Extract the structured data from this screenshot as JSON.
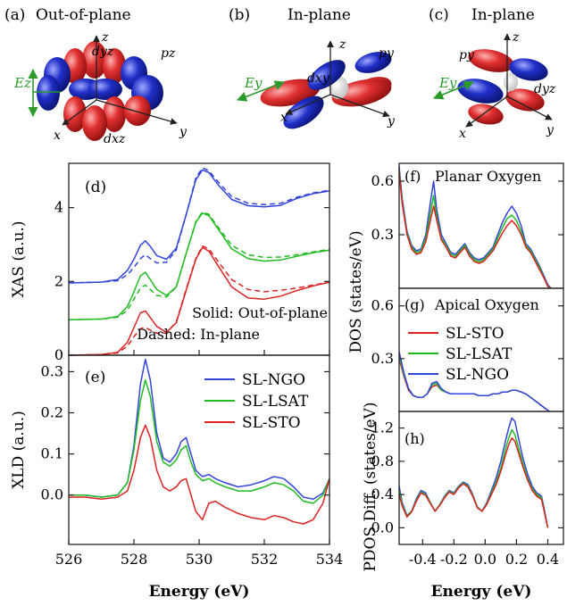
{
  "figure": {
    "orbitals": [
      {
        "label": "(a)",
        "title": "Out-of-plane",
        "field": "Ez",
        "orbital_labels": [
          "dyz",
          "pz",
          "dxz"
        ],
        "axes": [
          "x",
          "y",
          "z"
        ]
      },
      {
        "label": "(b)",
        "title": "In-plane",
        "field": "Ey",
        "orbital_labels": [
          "dxy",
          "py"
        ],
        "axes": [
          "x",
          "y",
          "z"
        ]
      },
      {
        "label": "(c)",
        "title": "In-plane",
        "field": "Ey",
        "orbital_labels": [
          "py",
          "dyz"
        ],
        "axes": [
          "x",
          "y",
          "z"
        ]
      }
    ],
    "colors": {
      "NGO": "#3344dd",
      "LSAT": "#22bb22",
      "STO": "#dd2222",
      "lobe_red": "#d42020",
      "lobe_blue": "#1e2fc0",
      "field_arrow": "#2a9a2a"
    }
  },
  "chart_data": [
    {
      "panel": "(d)",
      "type": "line",
      "ylabel": "XAS (a.u.)",
      "xlim": [
        526,
        534
      ],
      "ylim": [
        0,
        5.2
      ],
      "yticks": [
        0,
        2,
        4
      ],
      "annotations": [
        "Solid: Out-of-plane",
        "Dashed: In-plane"
      ],
      "x": [
        526,
        526.5,
        527,
        527.5,
        527.8,
        528.0,
        528.2,
        528.35,
        528.5,
        528.7,
        529.0,
        529.3,
        529.6,
        529.9,
        530.1,
        530.3,
        530.6,
        531.0,
        531.5,
        532.0,
        532.5,
        533.0,
        533.5,
        534.0
      ],
      "series": [
        {
          "color": "NGO",
          "style": "solid",
          "values": [
            1.96,
            1.97,
            1.98,
            2.05,
            2.3,
            2.6,
            2.98,
            3.1,
            2.95,
            2.7,
            2.6,
            2.9,
            3.8,
            4.75,
            5.02,
            4.95,
            4.6,
            4.22,
            4.05,
            4.02,
            4.06,
            4.25,
            4.38,
            4.45
          ]
        },
        {
          "color": "NGO",
          "style": "dashed",
          "values": [
            1.96,
            1.97,
            1.98,
            2.02,
            2.18,
            2.38,
            2.62,
            2.72,
            2.62,
            2.5,
            2.52,
            2.85,
            3.8,
            4.8,
            5.08,
            5.0,
            4.68,
            4.3,
            4.12,
            4.08,
            4.12,
            4.28,
            4.4,
            4.47
          ]
        },
        {
          "color": "LSAT",
          "style": "solid",
          "values": [
            0.96,
            0.97,
            0.98,
            1.05,
            1.32,
            1.72,
            2.15,
            2.25,
            2.05,
            1.78,
            1.62,
            1.85,
            2.75,
            3.6,
            3.85,
            3.78,
            3.4,
            2.88,
            2.62,
            2.55,
            2.58,
            2.68,
            2.78,
            2.85
          ]
        },
        {
          "color": "LSAT",
          "style": "dashed",
          "values": [
            0.96,
            0.97,
            0.98,
            1.03,
            1.22,
            1.52,
            1.82,
            1.9,
            1.78,
            1.62,
            1.58,
            1.85,
            2.75,
            3.62,
            3.88,
            3.82,
            3.45,
            2.98,
            2.72,
            2.65,
            2.66,
            2.72,
            2.8,
            2.87
          ]
        },
        {
          "color": "STO",
          "style": "solid",
          "values": [
            0.0,
            0.01,
            0.02,
            0.08,
            0.35,
            0.75,
            1.15,
            1.2,
            1.02,
            0.78,
            0.62,
            0.88,
            1.75,
            2.6,
            2.92,
            2.82,
            2.4,
            1.85,
            1.55,
            1.52,
            1.6,
            1.75,
            1.88,
            1.98
          ]
        },
        {
          "color": "STO",
          "style": "dashed",
          "values": [
            0.0,
            0.01,
            0.02,
            0.06,
            0.25,
            0.5,
            0.72,
            0.75,
            0.68,
            0.6,
            0.6,
            0.9,
            1.78,
            2.62,
            2.96,
            2.88,
            2.52,
            2.05,
            1.78,
            1.72,
            1.76,
            1.82,
            1.9,
            1.98
          ]
        }
      ]
    },
    {
      "panel": "(e)",
      "type": "line",
      "xlabel": "Energy (eV)",
      "ylabel": "XLD (a.u.)",
      "xlim": [
        526,
        534
      ],
      "ylim": [
        -0.12,
        0.34
      ],
      "yticks": [
        0.0,
        0.1,
        0.2,
        0.3
      ],
      "xticks": [
        526,
        528,
        530,
        532,
        534
      ],
      "x": [
        526,
        526.5,
        527,
        527.5,
        527.8,
        528.0,
        528.2,
        528.35,
        528.5,
        528.7,
        528.9,
        529.1,
        529.3,
        529.45,
        529.6,
        529.75,
        529.9,
        530.1,
        530.3,
        530.5,
        530.8,
        531.2,
        531.6,
        532.0,
        532.3,
        532.6,
        532.9,
        533.2,
        533.5,
        533.8,
        534.0
      ],
      "series": [
        {
          "name": "SL-NGO",
          "color": "NGO",
          "values": [
            0.0,
            0.0,
            -0.005,
            0.0,
            0.03,
            0.12,
            0.27,
            0.33,
            0.28,
            0.15,
            0.09,
            0.08,
            0.1,
            0.13,
            0.14,
            0.1,
            0.06,
            0.045,
            0.05,
            0.04,
            0.03,
            0.02,
            0.025,
            0.035,
            0.045,
            0.04,
            0.02,
            -0.005,
            -0.01,
            0.005,
            0.04
          ]
        },
        {
          "name": "SL-LSAT",
          "color": "LSAT",
          "values": [
            0.0,
            0.0,
            -0.005,
            0.0,
            0.03,
            0.11,
            0.23,
            0.28,
            0.24,
            0.13,
            0.08,
            0.07,
            0.085,
            0.11,
            0.12,
            0.08,
            0.05,
            0.035,
            0.04,
            0.03,
            0.02,
            0.01,
            0.01,
            0.02,
            0.03,
            0.025,
            0.01,
            -0.015,
            -0.02,
            0.0,
            0.04
          ]
        },
        {
          "name": "SL-STO",
          "color": "STO",
          "values": [
            -0.005,
            -0.005,
            -0.01,
            -0.005,
            0.01,
            0.06,
            0.14,
            0.17,
            0.14,
            0.06,
            0.02,
            0.01,
            0.02,
            0.035,
            0.04,
            0.0,
            -0.04,
            -0.06,
            -0.02,
            -0.015,
            -0.03,
            -0.045,
            -0.055,
            -0.06,
            -0.05,
            -0.055,
            -0.065,
            -0.07,
            -0.06,
            -0.02,
            0.04
          ]
        }
      ]
    },
    {
      "panel": "(f)",
      "type": "line",
      "title": "Planar Oxygen",
      "xlim": [
        -0.55,
        0.5
      ],
      "ylim": [
        0,
        0.7
      ],
      "yticks": [
        0.3,
        0.6
      ],
      "x": [
        -0.55,
        -0.53,
        -0.5,
        -0.47,
        -0.44,
        -0.41,
        -0.38,
        -0.35,
        -0.33,
        -0.31,
        -0.28,
        -0.25,
        -0.22,
        -0.19,
        -0.16,
        -0.13,
        -0.1,
        -0.07,
        -0.04,
        -0.01,
        0.02,
        0.05,
        0.08,
        0.11,
        0.14,
        0.17,
        0.2,
        0.23,
        0.26,
        0.29,
        0.32,
        0.35,
        0.38,
        0.4,
        0.42
      ],
      "series": [
        {
          "color": "NGO",
          "values": [
            0.68,
            0.5,
            0.32,
            0.24,
            0.21,
            0.22,
            0.3,
            0.48,
            0.6,
            0.44,
            0.3,
            0.25,
            0.2,
            0.19,
            0.22,
            0.25,
            0.2,
            0.17,
            0.16,
            0.17,
            0.2,
            0.23,
            0.3,
            0.37,
            0.42,
            0.46,
            0.42,
            0.35,
            0.25,
            0.22,
            0.17,
            0.12,
            0.06,
            0.02,
            0.0
          ]
        },
        {
          "color": "LSAT",
          "values": [
            0.66,
            0.48,
            0.31,
            0.23,
            0.2,
            0.21,
            0.28,
            0.42,
            0.52,
            0.4,
            0.28,
            0.24,
            0.19,
            0.18,
            0.21,
            0.24,
            0.19,
            0.16,
            0.15,
            0.16,
            0.19,
            0.22,
            0.28,
            0.34,
            0.39,
            0.41,
            0.38,
            0.32,
            0.24,
            0.21,
            0.16,
            0.11,
            0.05,
            0.01,
            0.0
          ]
        },
        {
          "color": "STO",
          "values": [
            0.65,
            0.47,
            0.3,
            0.22,
            0.19,
            0.2,
            0.26,
            0.38,
            0.46,
            0.38,
            0.27,
            0.23,
            0.18,
            0.17,
            0.2,
            0.23,
            0.18,
            0.15,
            0.14,
            0.15,
            0.18,
            0.21,
            0.26,
            0.31,
            0.35,
            0.38,
            0.35,
            0.3,
            0.23,
            0.2,
            0.15,
            0.1,
            0.05,
            0.01,
            0.0
          ]
        }
      ]
    },
    {
      "panel": "(g)",
      "type": "line",
      "title": "Apical Oxygen",
      "ylabel": "DOS (states/eV)",
      "xlim": [
        -0.55,
        0.5
      ],
      "ylim": [
        0,
        0.7
      ],
      "yticks": [
        0.3,
        0.6
      ],
      "x": [
        -0.55,
        -0.52,
        -0.49,
        -0.46,
        -0.43,
        -0.4,
        -0.37,
        -0.34,
        -0.31,
        -0.28,
        -0.25,
        -0.22,
        -0.19,
        -0.16,
        -0.13,
        -0.1,
        -0.07,
        -0.04,
        -0.01,
        0.02,
        0.05,
        0.08,
        0.11,
        0.14,
        0.17,
        0.2,
        0.23,
        0.26,
        0.29,
        0.32,
        0.35,
        0.38,
        0.41
      ],
      "series": [
        {
          "name": "SL-STO",
          "color": "STO",
          "values": [
            0.3,
            0.2,
            0.12,
            0.09,
            0.08,
            0.08,
            0.1,
            0.14,
            0.15,
            0.12,
            0.11,
            0.1,
            0.1,
            0.1,
            0.1,
            0.1,
            0.1,
            0.09,
            0.09,
            0.09,
            0.1,
            0.1,
            0.11,
            0.11,
            0.12,
            0.12,
            0.11,
            0.1,
            0.08,
            0.06,
            0.04,
            0.02,
            0.0
          ]
        },
        {
          "name": "SL-LSAT",
          "color": "LSAT",
          "values": [
            0.32,
            0.21,
            0.13,
            0.09,
            0.08,
            0.08,
            0.1,
            0.15,
            0.16,
            0.12,
            0.11,
            0.1,
            0.1,
            0.1,
            0.1,
            0.1,
            0.1,
            0.09,
            0.09,
            0.09,
            0.1,
            0.1,
            0.11,
            0.11,
            0.12,
            0.12,
            0.11,
            0.1,
            0.08,
            0.06,
            0.04,
            0.02,
            0.0
          ]
        },
        {
          "name": "SL-NGO",
          "color": "NGO",
          "values": [
            0.34,
            0.22,
            0.13,
            0.09,
            0.08,
            0.08,
            0.1,
            0.16,
            0.17,
            0.13,
            0.11,
            0.1,
            0.1,
            0.1,
            0.1,
            0.1,
            0.1,
            0.09,
            0.09,
            0.09,
            0.1,
            0.1,
            0.11,
            0.11,
            0.12,
            0.12,
            0.11,
            0.1,
            0.08,
            0.06,
            0.04,
            0.02,
            0.0
          ]
        }
      ]
    },
    {
      "panel": "(h)",
      "type": "line",
      "xlabel": "Energy (eV)",
      "ylabel": "PDOS Diff. (states/eV)",
      "xlim": [
        -0.55,
        0.5
      ],
      "ylim": [
        -0.2,
        1.4
      ],
      "yticks": [
        0.0,
        0.4,
        0.8,
        1.2
      ],
      "xticks": [
        -0.4,
        -0.2,
        0.0,
        0.2,
        0.4
      ],
      "xticklabels": [
        "-0.4",
        "-0.2",
        "0.0",
        "0.2",
        "0.4"
      ],
      "x": [
        -0.55,
        -0.53,
        -0.5,
        -0.47,
        -0.44,
        -0.41,
        -0.38,
        -0.35,
        -0.32,
        -0.29,
        -0.26,
        -0.23,
        -0.2,
        -0.17,
        -0.14,
        -0.11,
        -0.08,
        -0.05,
        -0.02,
        0.01,
        0.04,
        0.07,
        0.1,
        0.13,
        0.15,
        0.17,
        0.19,
        0.21,
        0.24,
        0.27,
        0.3,
        0.33,
        0.36,
        0.38,
        0.4
      ],
      "series": [
        {
          "color": "NGO",
          "values": [
            0.5,
            0.3,
            0.15,
            0.2,
            0.35,
            0.45,
            0.42,
            0.3,
            0.2,
            0.28,
            0.38,
            0.45,
            0.42,
            0.5,
            0.55,
            0.52,
            0.4,
            0.25,
            0.2,
            0.3,
            0.45,
            0.6,
            0.8,
            1.05,
            1.2,
            1.32,
            1.28,
            1.1,
            0.85,
            0.65,
            0.5,
            0.42,
            0.38,
            0.2,
            0.0
          ]
        },
        {
          "color": "LSAT",
          "values": [
            0.45,
            0.28,
            0.14,
            0.2,
            0.33,
            0.43,
            0.4,
            0.3,
            0.2,
            0.28,
            0.37,
            0.44,
            0.41,
            0.49,
            0.54,
            0.5,
            0.39,
            0.25,
            0.2,
            0.29,
            0.42,
            0.55,
            0.72,
            0.95,
            1.08,
            1.18,
            1.12,
            0.98,
            0.78,
            0.6,
            0.47,
            0.4,
            0.36,
            0.18,
            0.0
          ]
        },
        {
          "color": "STO",
          "values": [
            0.4,
            0.26,
            0.13,
            0.19,
            0.32,
            0.42,
            0.39,
            0.29,
            0.2,
            0.27,
            0.36,
            0.43,
            0.4,
            0.48,
            0.53,
            0.49,
            0.38,
            0.24,
            0.2,
            0.28,
            0.4,
            0.52,
            0.68,
            0.88,
            1.0,
            1.08,
            1.04,
            0.92,
            0.74,
            0.58,
            0.45,
            0.38,
            0.34,
            0.17,
            0.0
          ]
        }
      ]
    }
  ]
}
